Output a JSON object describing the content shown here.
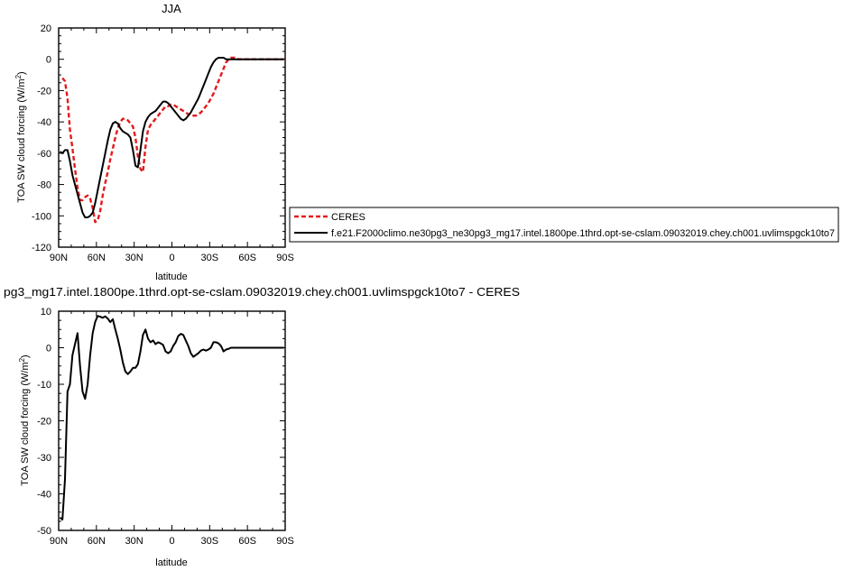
{
  "chart_data": [
    {
      "type": "line",
      "title": "JJA",
      "xlabel": "latitude",
      "ylabel": "TOA SW cloud forcing (W/m",
      "ylabel_sup": "2",
      "ylabel_end": ")",
      "xlim": [
        90,
        -90
      ],
      "ylim": [
        -120,
        20
      ],
      "xticks": [
        {
          "value": 90,
          "label": "90N"
        },
        {
          "value": 60,
          "label": "60N"
        },
        {
          "value": 30,
          "label": "30N"
        },
        {
          "value": 0,
          "label": "0"
        },
        {
          "value": -30,
          "label": "30S"
        },
        {
          "value": -60,
          "label": "60S"
        },
        {
          "value": -90,
          "label": "90S"
        }
      ],
      "yticks": [
        20,
        0,
        -20,
        -40,
        -60,
        -80,
        -100,
        -120
      ],
      "legend": "right",
      "series": [
        {
          "name": "CERES",
          "color": "#e41a1c",
          "style": "dashed",
          "x": [
            87,
            85,
            83,
            81,
            79,
            77,
            75,
            73,
            71,
            69,
            67,
            65,
            63,
            61,
            59,
            57,
            55,
            53,
            51,
            49,
            47,
            45,
            43,
            41,
            39,
            37,
            35,
            33,
            31,
            29,
            27,
            25,
            23,
            21,
            19,
            17,
            15,
            13,
            11,
            9,
            7,
            5,
            3,
            1,
            -1,
            -3,
            -5,
            -7,
            -9,
            -11,
            -13,
            -15,
            -17,
            -19,
            -21,
            -23,
            -25,
            -27,
            -29,
            -31,
            -33,
            -35,
            -37,
            -39,
            -41,
            -43,
            -45,
            -47,
            -49,
            -51,
            -53,
            -55,
            -57,
            -59,
            -61,
            -63,
            -65,
            -67,
            -69,
            -71,
            -73,
            -75,
            -77,
            -79,
            -81,
            -83,
            -85,
            -87,
            -89
          ],
          "values": [
            -12,
            -14,
            -25,
            -45,
            -57,
            -70,
            -82,
            -90,
            -90,
            -88,
            -87,
            -89,
            -95,
            -104,
            -103,
            -97,
            -87,
            -79,
            -72,
            -64,
            -57,
            -50,
            -44,
            -40,
            -38,
            -38,
            -39,
            -41,
            -43,
            -50,
            -62,
            -70,
            -72,
            -56,
            -45,
            -42,
            -40,
            -38,
            -36,
            -34,
            -32,
            -30,
            -30,
            -29,
            -29,
            -30,
            -31,
            -32,
            -33,
            -34,
            -35,
            -36,
            -36,
            -36,
            -35,
            -34,
            -32,
            -30,
            -28,
            -25,
            -22,
            -18,
            -14,
            -10,
            -6,
            -2,
            0,
            1,
            1,
            1,
            0,
            0,
            0,
            0,
            0,
            0,
            0,
            0,
            0,
            0,
            0,
            0,
            0,
            0,
            0,
            0,
            0,
            0,
            0
          ]
        },
        {
          "name": "f.e21.F2000climo.ne30pg3_ne30pg3_mg17.intel.1800pe.1thrd.opt-se-cslam.09032019.chey.ch001.uvlimspgck10to7",
          "color": "#000000",
          "style": "solid",
          "x": [
            89,
            87,
            85,
            83,
            81,
            79,
            77,
            75,
            73,
            71,
            69,
            67,
            65,
            63,
            61,
            59,
            57,
            55,
            53,
            51,
            49,
            47,
            45,
            43,
            41,
            39,
            37,
            35,
            33,
            31,
            29,
            27,
            25,
            23,
            21,
            19,
            17,
            15,
            13,
            11,
            9,
            7,
            5,
            3,
            1,
            -1,
            -3,
            -5,
            -7,
            -9,
            -11,
            -13,
            -15,
            -17,
            -19,
            -21,
            -23,
            -25,
            -27,
            -29,
            -31,
            -33,
            -35,
            -37,
            -39,
            -41,
            -43,
            -45,
            -47,
            -49,
            -51,
            -53,
            -55,
            -57,
            -59,
            -61,
            -63,
            -65,
            -67,
            -69,
            -71,
            -73,
            -75,
            -77,
            -79,
            -81,
            -83,
            -85,
            -87,
            -89
          ],
          "values": [
            -59,
            -60,
            -58,
            -58,
            -65,
            -74,
            -80,
            -86,
            -92,
            -98,
            -101,
            -101,
            -100,
            -98,
            -92,
            -84,
            -76,
            -68,
            -60,
            -52,
            -45,
            -41,
            -40,
            -41,
            -44,
            -46,
            -47,
            -48,
            -50,
            -58,
            -68,
            -69,
            -58,
            -46,
            -40,
            -37,
            -35,
            -34,
            -33,
            -31,
            -29,
            -27,
            -27,
            -28,
            -30,
            -32,
            -34,
            -36,
            -38,
            -39,
            -38,
            -36,
            -34,
            -31,
            -28,
            -25,
            -21,
            -17,
            -13,
            -9,
            -5,
            -2,
            0,
            1,
            1,
            1,
            0,
            0,
            0,
            0,
            0,
            0,
            0,
            0,
            0,
            0,
            0,
            0,
            0,
            0,
            0,
            0,
            0,
            0,
            0,
            0,
            0,
            0,
            0,
            0
          ]
        }
      ]
    },
    {
      "type": "line",
      "title": "pg3_mg17.intel.1800pe.1thrd.opt-se-cslam.09032019.chey.ch001.uvlimspgck10to7 - CERES",
      "xlabel": "latitude",
      "ylabel": "TOA SW cloud forcing (W/m",
      "ylabel_sup": "2",
      "ylabel_end": ")",
      "xlim": [
        90,
        -90
      ],
      "ylim": [
        -50,
        10
      ],
      "xticks": [
        {
          "value": 90,
          "label": "90N"
        },
        {
          "value": 60,
          "label": "60N"
        },
        {
          "value": 30,
          "label": "30N"
        },
        {
          "value": 0,
          "label": "0"
        },
        {
          "value": -30,
          "label": "30S"
        },
        {
          "value": -60,
          "label": "60S"
        },
        {
          "value": -90,
          "label": "90S"
        }
      ],
      "yticks": [
        10,
        0,
        -10,
        -20,
        -30,
        -40,
        -50
      ],
      "series": [
        {
          "color": "#000000",
          "style": "solid",
          "x": [
            89,
            87,
            85,
            83,
            81,
            79,
            77,
            75,
            73,
            71,
            69,
            67,
            65,
            63,
            61,
            59,
            57,
            55,
            53,
            51,
            49,
            47,
            45,
            43,
            41,
            39,
            37,
            35,
            33,
            31,
            29,
            27,
            25,
            23,
            21,
            19,
            17,
            15,
            13,
            11,
            9,
            7,
            5,
            3,
            1,
            -1,
            -3,
            -5,
            -7,
            -9,
            -11,
            -13,
            -15,
            -17,
            -19,
            -21,
            -23,
            -25,
            -27,
            -29,
            -31,
            -33,
            -35,
            -37,
            -39,
            -41,
            -43,
            -45,
            -47,
            -49,
            -51,
            -53,
            -55,
            -57,
            -59,
            -61,
            -63,
            -65,
            -67,
            -69,
            -71,
            -73,
            -75,
            -77,
            -79,
            -81,
            -83,
            -85,
            -87,
            -89
          ],
          "values": [
            -46.5,
            -47,
            -36,
            -12,
            -10,
            -2,
            1,
            4,
            -5,
            -12,
            -14,
            -10,
            -2,
            4,
            7,
            8.7,
            8.5,
            8.2,
            8.6,
            8.0,
            7.0,
            7.8,
            5.0,
            2.5,
            -0.5,
            -4,
            -6.5,
            -7.2,
            -6.5,
            -5.5,
            -5.5,
            -4.5,
            -1,
            3.5,
            5,
            2.5,
            1.5,
            2,
            1,
            1.5,
            1.2,
            0.8,
            -1,
            -1.5,
            -1,
            0.5,
            1.5,
            3.2,
            3.8,
            3.5,
            2,
            0.5,
            -1.5,
            -2.5,
            -2,
            -1.5,
            -0.8,
            -0.5,
            -0.8,
            -0.5,
            0,
            1.5,
            1.5,
            1.2,
            0.5,
            -1,
            -0.5,
            -0.3,
            0,
            0,
            0,
            0,
            0,
            0,
            0,
            0,
            0,
            0,
            0,
            0,
            0,
            0,
            0,
            0,
            0,
            0,
            0,
            0,
            0,
            0
          ]
        }
      ]
    }
  ]
}
